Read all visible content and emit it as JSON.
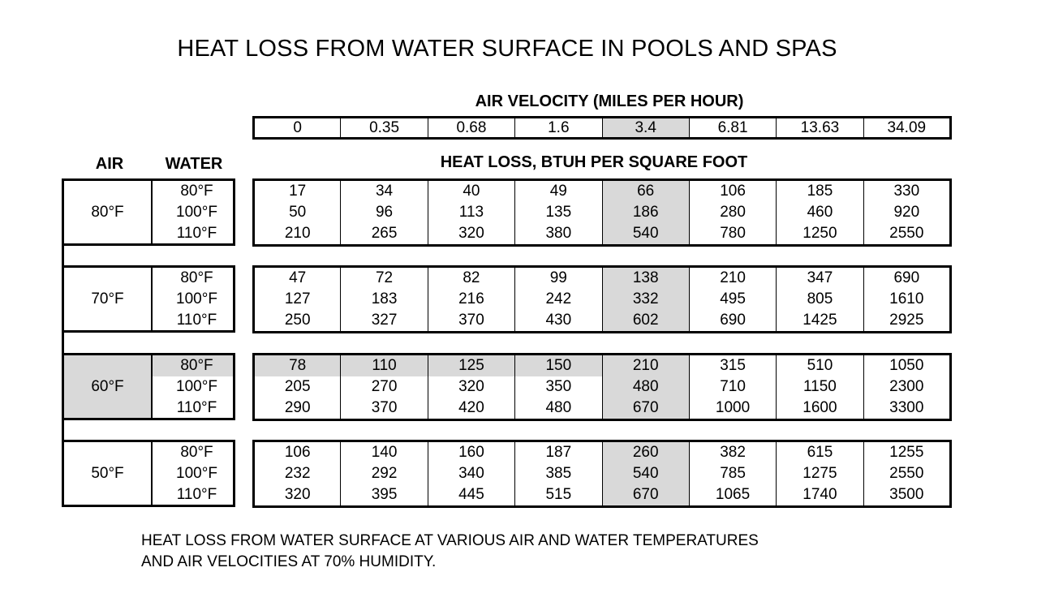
{
  "title": "HEAT LOSS FROM WATER SURFACE IN POOLS AND SPAS",
  "velocity_heading": "AIR VELOCITY (MILES PER HOUR)",
  "velocities": [
    "0",
    "0.35",
    "0.68",
    "1.6",
    "3.4",
    "6.81",
    "13.63",
    "34.09"
  ],
  "col_air_label": "AIR",
  "col_water_label": "WATER",
  "heat_loss_heading": "HEAT LOSS, BTUH PER SQUARE FOOT",
  "groups": [
    {
      "air": "80°F",
      "rows": [
        {
          "water": "80°F",
          "values": [
            "17",
            "34",
            "40",
            "49",
            "66",
            "106",
            "185",
            "330"
          ]
        },
        {
          "water": "100°F",
          "values": [
            "50",
            "96",
            "113",
            "135",
            "186",
            "280",
            "460",
            "920"
          ]
        },
        {
          "water": "110°F",
          "values": [
            "210",
            "265",
            "320",
            "380",
            "540",
            "780",
            "1250",
            "2550"
          ]
        }
      ]
    },
    {
      "air": "70°F",
      "rows": [
        {
          "water": "80°F",
          "values": [
            "47",
            "72",
            "82",
            "99",
            "138",
            "210",
            "347",
            "690"
          ]
        },
        {
          "water": "100°F",
          "values": [
            "127",
            "183",
            "216",
            "242",
            "332",
            "495",
            "805",
            "1610"
          ]
        },
        {
          "water": "110°F",
          "values": [
            "250",
            "327",
            "370",
            "430",
            "602",
            "690",
            "1425",
            "2925"
          ]
        }
      ]
    },
    {
      "air": "60°F",
      "rows": [
        {
          "water": "80°F",
          "values": [
            "78",
            "110",
            "125",
            "150",
            "210",
            "315",
            "510",
            "1050"
          ]
        },
        {
          "water": "100°F",
          "values": [
            "205",
            "270",
            "320",
            "350",
            "480",
            "710",
            "1150",
            "2300"
          ]
        },
        {
          "water": "110°F",
          "values": [
            "290",
            "370",
            "420",
            "480",
            "670",
            "1000",
            "1600",
            "3300"
          ]
        }
      ]
    },
    {
      "air": "50°F",
      "rows": [
        {
          "water": "80°F",
          "values": [
            "106",
            "140",
            "160",
            "187",
            "260",
            "382",
            "615",
            "1255"
          ]
        },
        {
          "water": "100°F",
          "values": [
            "232",
            "292",
            "340",
            "385",
            "540",
            "785",
            "1275",
            "2550"
          ]
        },
        {
          "water": "110°F",
          "values": [
            "320",
            "395",
            "445",
            "515",
            "670",
            "1065",
            "1740",
            "3500"
          ]
        }
      ]
    }
  ],
  "highlight": {
    "velocity_column": "3.4",
    "air": "60°F",
    "water": "80°F",
    "color": "#d9d9d9"
  },
  "footnote_line1": "HEAT LOSS FROM WATER SURFACE AT VARIOUS AIR AND WATER TEMPERATURES",
  "footnote_line2": "AND AIR VELOCITIES AT 70% HUMIDITY."
}
